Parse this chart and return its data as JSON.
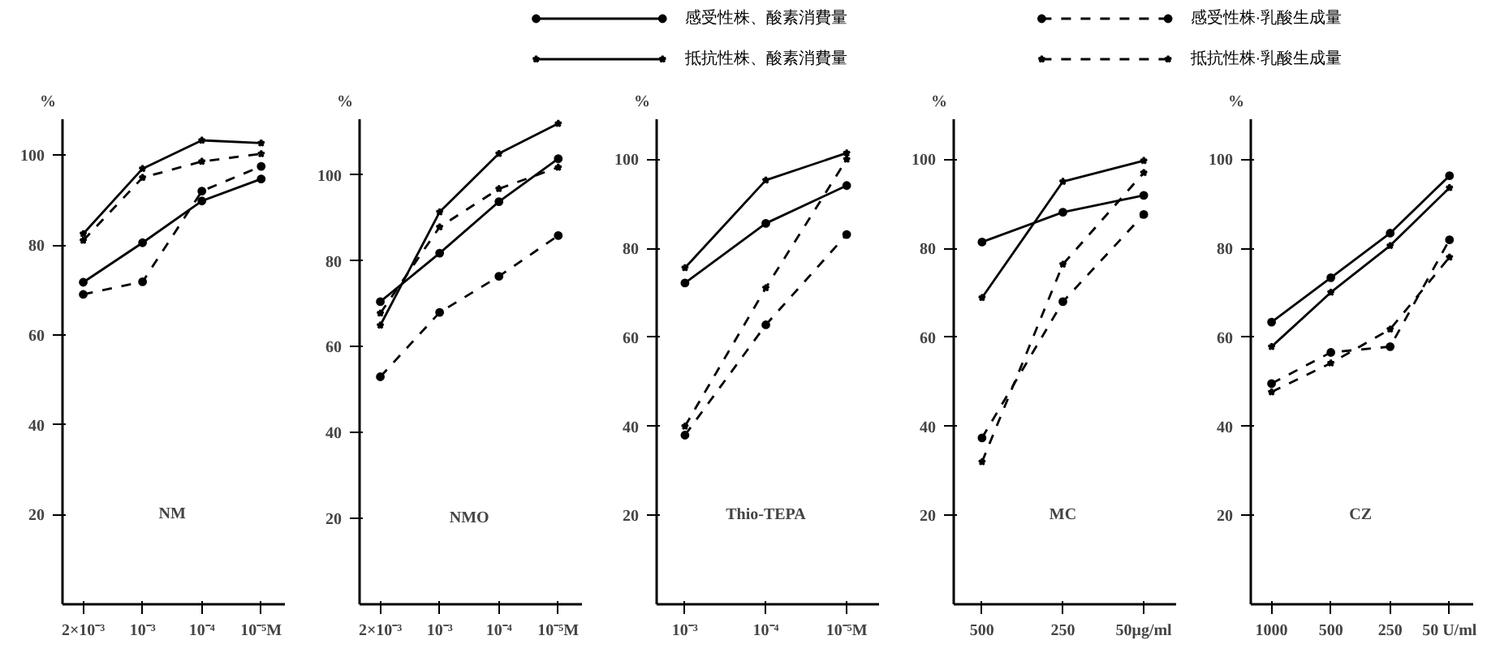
{
  "chart_data": [
    {
      "type": "line",
      "ylabel": "%",
      "annotations": [
        "NM"
      ],
      "categories": [
        "2×10⁻³",
        "10⁻³",
        "10⁻⁴",
        "10⁻⁵M"
      ],
      "ylim": [
        0,
        108
      ],
      "yticks": [
        20,
        40,
        60,
        80,
        100
      ],
      "grid": false,
      "legend": "top",
      "series": [
        {
          "name": "感受性株、酸素消費量",
          "color": "#000000",
          "marker": "circle",
          "line_style": "solid",
          "values": [
            71.7,
            80.5,
            89.8,
            94.7
          ]
        },
        {
          "name": "抵抗性株、酸素消費量",
          "color": "#000000",
          "marker": "star",
          "line_style": "solid",
          "values": [
            82.5,
            97,
            103.3,
            102.7
          ]
        },
        {
          "name": "感受性株·乳酸生成量",
          "color": "#000000",
          "marker": "circle",
          "line_style": "dashed",
          "values": [
            69,
            71.8,
            92,
            97.5
          ]
        },
        {
          "name": "抵抗性株·乳酸生成量",
          "color": "#000000",
          "marker": "star",
          "line_style": "dashed",
          "values": [
            81,
            95,
            98.6,
            100.3
          ]
        }
      ]
    },
    {
      "type": "line",
      "ylabel": "%",
      "annotations": [
        "NMO"
      ],
      "categories": [
        "2×10⁻³",
        "10⁻³",
        "10⁻⁴",
        "10⁻⁵M"
      ],
      "ylim": [
        0,
        113
      ],
      "yticks": [
        20,
        40,
        60,
        80,
        100
      ],
      "grid": false,
      "series": [
        {
          "color": "#000000",
          "marker": "circle",
          "line_style": "solid",
          "values": [
            70.5,
            81.8,
            93.8,
            103.8
          ]
        },
        {
          "color": "#000000",
          "marker": "star",
          "line_style": "solid",
          "values": [
            65,
            91.4,
            105,
            112
          ]
        },
        {
          "color": "#000000",
          "marker": "circle",
          "line_style": "dashed",
          "values": [
            53,
            68,
            76.4,
            85.9
          ]
        },
        {
          "color": "#000000",
          "marker": "star",
          "line_style": "dashed",
          "values": [
            67.8,
            87.9,
            96.8,
            101.8
          ]
        }
      ]
    },
    {
      "type": "line",
      "ylabel": "%",
      "annotations": [
        "Thio-TEPA"
      ],
      "categories": [
        "10⁻³",
        "10⁻⁴",
        "10⁻⁵M"
      ],
      "ylim": [
        0,
        109
      ],
      "yticks": [
        20,
        40,
        60,
        80,
        100
      ],
      "grid": false,
      "series": [
        {
          "color": "#000000",
          "marker": "circle",
          "line_style": "solid",
          "values": [
            72.2,
            85.6,
            94.1
          ]
        },
        {
          "color": "#000000",
          "marker": "star",
          "line_style": "solid",
          "values": [
            75.6,
            95.3,
            101.4
          ]
        },
        {
          "color": "#000000",
          "marker": "circle",
          "line_style": "dashed",
          "values": [
            38,
            62.8,
            83.1
          ]
        },
        {
          "color": "#000000",
          "marker": "star",
          "line_style": "dashed",
          "values": [
            40,
            71.1,
            100
          ]
        }
      ]
    },
    {
      "type": "line",
      "ylabel": "%",
      "annotations": [
        "MC"
      ],
      "categories": [
        "500",
        "250",
        "50μg/ml"
      ],
      "ylim": [
        0,
        109
      ],
      "yticks": [
        20,
        40,
        60,
        80,
        100
      ],
      "grid": false,
      "series": [
        {
          "color": "#000000",
          "marker": "circle",
          "line_style": "solid",
          "values": [
            81.4,
            88.1,
            91.9
          ]
        },
        {
          "color": "#000000",
          "marker": "star",
          "line_style": "solid",
          "values": [
            68.9,
            95,
            99.7
          ]
        },
        {
          "color": "#000000",
          "marker": "circle",
          "line_style": "dashed",
          "values": [
            37.4,
            68,
            87.6
          ]
        },
        {
          "color": "#000000",
          "marker": "star",
          "line_style": "dashed",
          "values": [
            32,
            76.4,
            97
          ]
        }
      ]
    },
    {
      "type": "line",
      "ylabel": "%",
      "annotations": [
        "CZ"
      ],
      "categories": [
        "1000",
        "500",
        "250",
        "50 U/ml"
      ],
      "ylim": [
        0,
        109
      ],
      "yticks": [
        20,
        40,
        60,
        80,
        100
      ],
      "grid": false,
      "series": [
        {
          "color": "#000000",
          "marker": "circle",
          "line_style": "solid",
          "values": [
            63.4,
            73.4,
            83.4,
            96.3
          ]
        },
        {
          "color": "#000000",
          "marker": "star",
          "line_style": "solid",
          "values": [
            57.9,
            70.1,
            80.6,
            93.6
          ]
        },
        {
          "color": "#000000",
          "marker": "circle",
          "line_style": "dashed",
          "values": [
            49.6,
            56.6,
            57.9,
            81.9
          ]
        },
        {
          "color": "#000000",
          "marker": "star",
          "line_style": "dashed",
          "values": [
            47.7,
            54.2,
            61.8,
            78
          ]
        }
      ]
    }
  ]
}
